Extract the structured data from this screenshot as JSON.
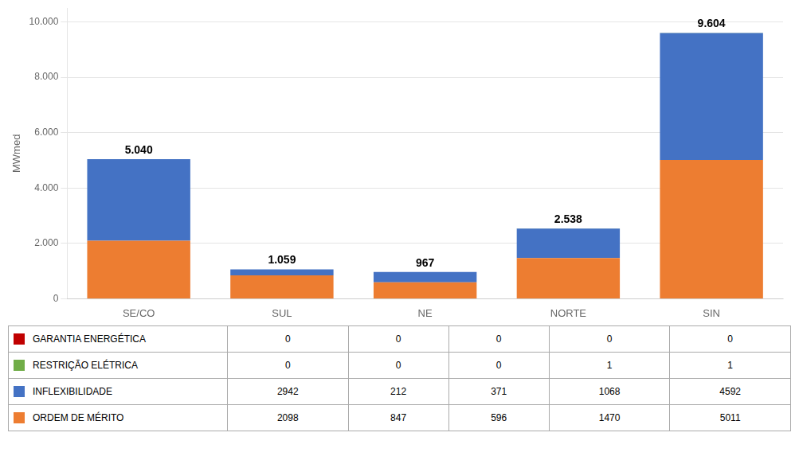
{
  "chart_data": {
    "type": "bar",
    "stacked": true,
    "categories": [
      "SE/CO",
      "SUL",
      "NE",
      "NORTE",
      "SIN"
    ],
    "series": [
      {
        "name": "ORDEM DE MÉRITO",
        "color": "#ED7D31",
        "values": [
          2098,
          847,
          596,
          1470,
          5011
        ]
      },
      {
        "name": "INFLEXIBILIDADE",
        "color": "#4472C4",
        "values": [
          2942,
          212,
          371,
          1068,
          4592
        ]
      },
      {
        "name": "RESTRIÇÃO ELÉTRICA",
        "color": "#70AD47",
        "values": [
          0,
          0,
          0,
          1,
          1
        ]
      },
      {
        "name": "GARANTIA ENERGÉTICA",
        "color": "#C00000",
        "values": [
          0,
          0,
          0,
          0,
          0
        ]
      }
    ],
    "totals": [
      5040,
      1059,
      967,
      2538,
      9604
    ],
    "total_labels": [
      "5.040",
      "1.059",
      "967",
      "2.538",
      "9.604"
    ],
    "ylabel": "MWmed",
    "ylim": [
      0,
      10500
    ],
    "yticks": [
      0,
      {
        "value": 2000,
        "label": "2.000"
      },
      {
        "value": 4000,
        "label": "4.000"
      },
      {
        "value": 6000,
        "label": "6.000"
      },
      {
        "value": 8000,
        "label": "8.000"
      },
      {
        "value": 10000,
        "label": "10.000"
      }
    ],
    "grid": true
  }
}
